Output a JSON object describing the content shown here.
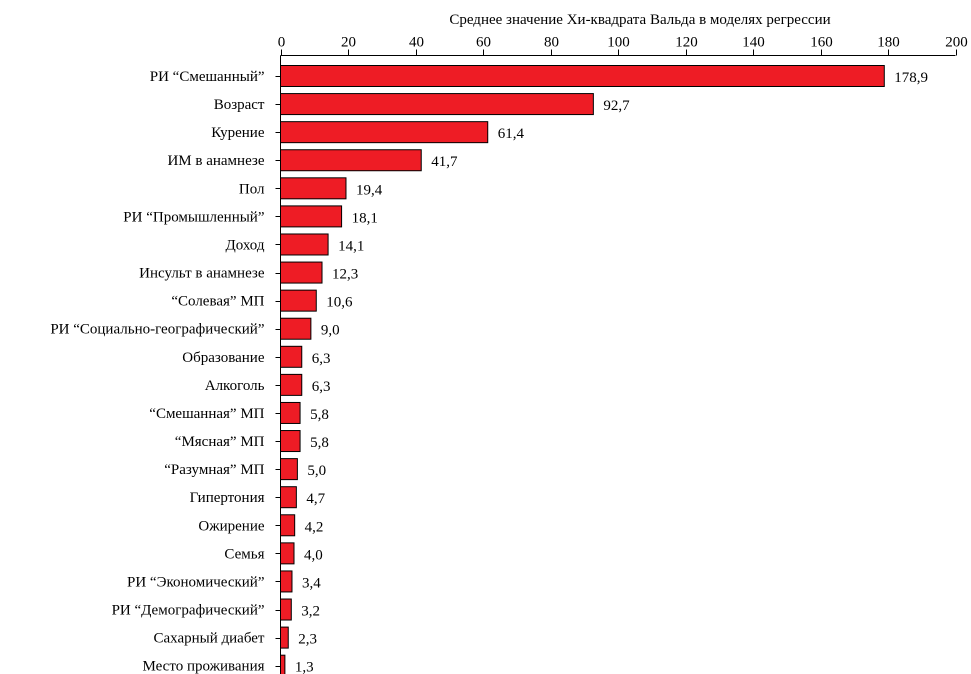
{
  "chart_data": {
    "type": "bar",
    "orientation": "horizontal",
    "title": "Среднее значение Хи-квадрата Вальда в моделях регрессии",
    "xlim": [
      0,
      200
    ],
    "xticks": [
      0,
      20,
      40,
      60,
      80,
      100,
      120,
      140,
      160,
      180,
      200
    ],
    "axis_position": "top",
    "grid": false,
    "bar_color": "#ee1c25",
    "categories": [
      "РИ “Смешанный”",
      "Возраст",
      "Курение",
      "ИМ в анамнезе",
      "Пол",
      "РИ “Промышленный”",
      "Доход",
      "Инсульт в анамнезе",
      "“Солевая” МП",
      "РИ “Социально-географический”",
      "Образование",
      "Алкоголь",
      "“Смешанная” МП",
      "“Мясная” МП",
      "“Разумная” МП",
      "Гипертония",
      "Ожирение",
      "Семья",
      "РИ “Экономический”",
      "РИ “Демографический”",
      "Сахарный диабет",
      "Место проживания"
    ],
    "values": [
      178.9,
      92.7,
      61.4,
      41.7,
      19.4,
      18.1,
      14.1,
      12.3,
      10.6,
      9.0,
      6.3,
      6.3,
      5.8,
      5.8,
      5.0,
      4.7,
      4.2,
      4.0,
      3.4,
      3.2,
      2.3,
      1.3
    ],
    "value_labels": [
      "178,9",
      "92,7",
      "61,4",
      "41,7",
      "19,4",
      "18,1",
      "14,1",
      "12,3",
      "10,6",
      "9,0",
      "6,3",
      "6,3",
      "5,8",
      "5,8",
      "5,0",
      "4,7",
      "4,2",
      "4,0",
      "3,4",
      "3,2",
      "2,3",
      "1,3"
    ]
  }
}
